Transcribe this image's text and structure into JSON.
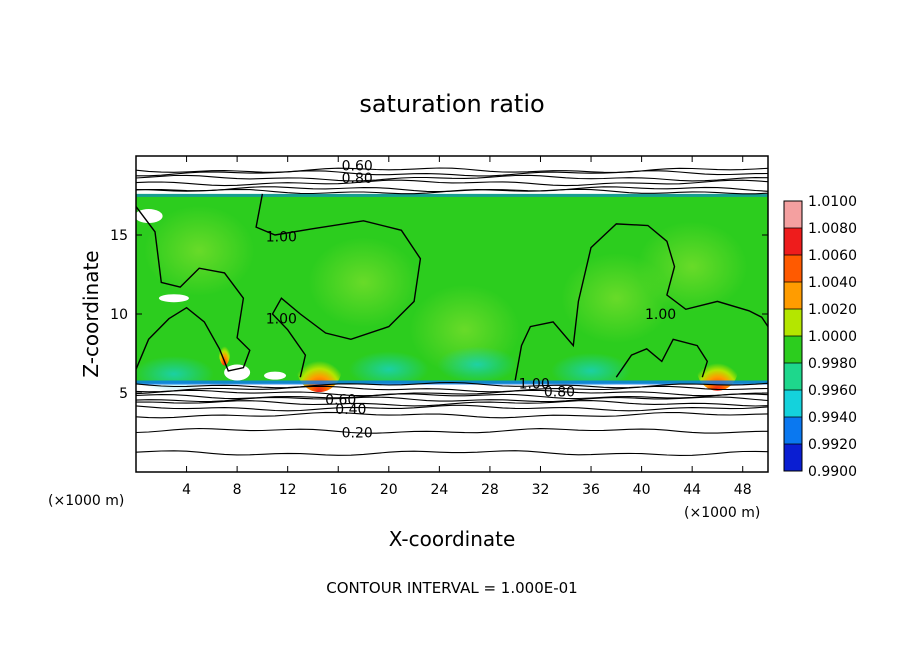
{
  "chart_data": {
    "type": "heatmap",
    "title": "saturation ratio",
    "xlabel": "X-coordinate",
    "ylabel": "Z-coordinate",
    "x_unit": "(×1000 m)",
    "z_unit": "(×1000 m)",
    "xlim": [
      0,
      50
    ],
    "ylim": [
      0,
      20
    ],
    "x_ticks": [
      4,
      8,
      12,
      16,
      20,
      24,
      28,
      32,
      36,
      40,
      44,
      48
    ],
    "y_ticks": [
      5,
      10,
      15
    ],
    "colorbar": {
      "min": 0.99,
      "max": 1.01,
      "levels": [
        {
          "value": 1.01,
          "label": "1.0100",
          "color": "#f4a0a0"
        },
        {
          "value": 1.008,
          "label": "1.0080",
          "color": "#ee1c1c"
        },
        {
          "value": 1.006,
          "label": "1.0060",
          "color": "#ff5a00"
        },
        {
          "value": 1.004,
          "label": "1.0040",
          "color": "#ff9c00"
        },
        {
          "value": 1.002,
          "label": "1.0020",
          "color": "#b4e600"
        },
        {
          "value": 1.0,
          "label": "1.0000",
          "color": "#2ccd1e"
        },
        {
          "value": 0.998,
          "label": "0.9980",
          "color": "#1ed78c"
        },
        {
          "value": 0.996,
          "label": "0.9960",
          "color": "#14d2dc"
        },
        {
          "value": 0.994,
          "label": "0.9940",
          "color": "#0a78f0"
        },
        {
          "value": 0.992,
          "label": "0.9920",
          "color": "#0a1ed2"
        },
        {
          "value": 0.99,
          "label": "0.9900",
          "color": "#5a0a96"
        }
      ]
    },
    "colored_region_z": [
      5.6,
      17.6
    ],
    "warm_spots": [
      {
        "x": 14.5,
        "z": 5.8
      },
      {
        "x": 46,
        "z": 5.8
      },
      {
        "x": 7,
        "z": 7.2
      }
    ],
    "contour_labels": [
      {
        "text": "0.60",
        "x": 17.5,
        "z": 19.4
      },
      {
        "text": "0.80",
        "x": 17.5,
        "z": 18.6
      },
      {
        "text": "1.00",
        "x": 11.5,
        "z": 14.9
      },
      {
        "text": "1.00",
        "x": 11.5,
        "z": 9.7
      },
      {
        "text": "1.00",
        "x": 41.5,
        "z": 10.0
      },
      {
        "text": "1.00",
        "x": 31.5,
        "z": 5.6
      },
      {
        "text": "0.80",
        "x": 33.5,
        "z": 5.1
      },
      {
        "text": "0.60",
        "x": 16.2,
        "z": 4.6
      },
      {
        "text": "0.40",
        "x": 17,
        "z": 4.0
      },
      {
        "text": "0.20",
        "x": 17.5,
        "z": 2.5
      }
    ],
    "contour_interval": "CONTOUR INTERVAL = 1.000E-01"
  }
}
